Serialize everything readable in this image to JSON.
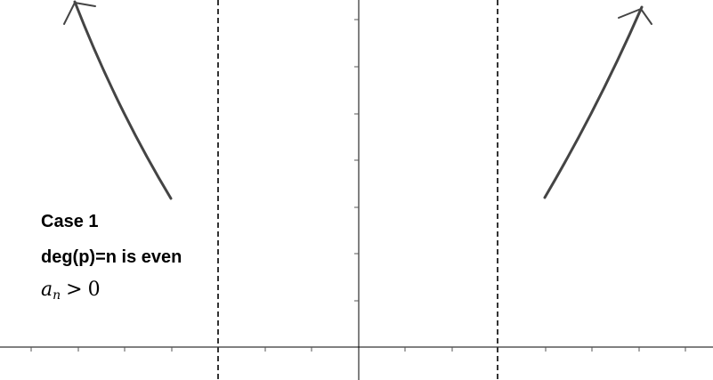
{
  "diagram": {
    "case_title": "Case 1",
    "condition_degree": "deg(p)=n is even",
    "condition_leading_coef": {
      "variable": "a",
      "subscript": "n",
      "operator": ">",
      "value": "0"
    }
  },
  "colors": {
    "curve": "#444444",
    "axis": "#000000",
    "asymptote": "#333333"
  }
}
